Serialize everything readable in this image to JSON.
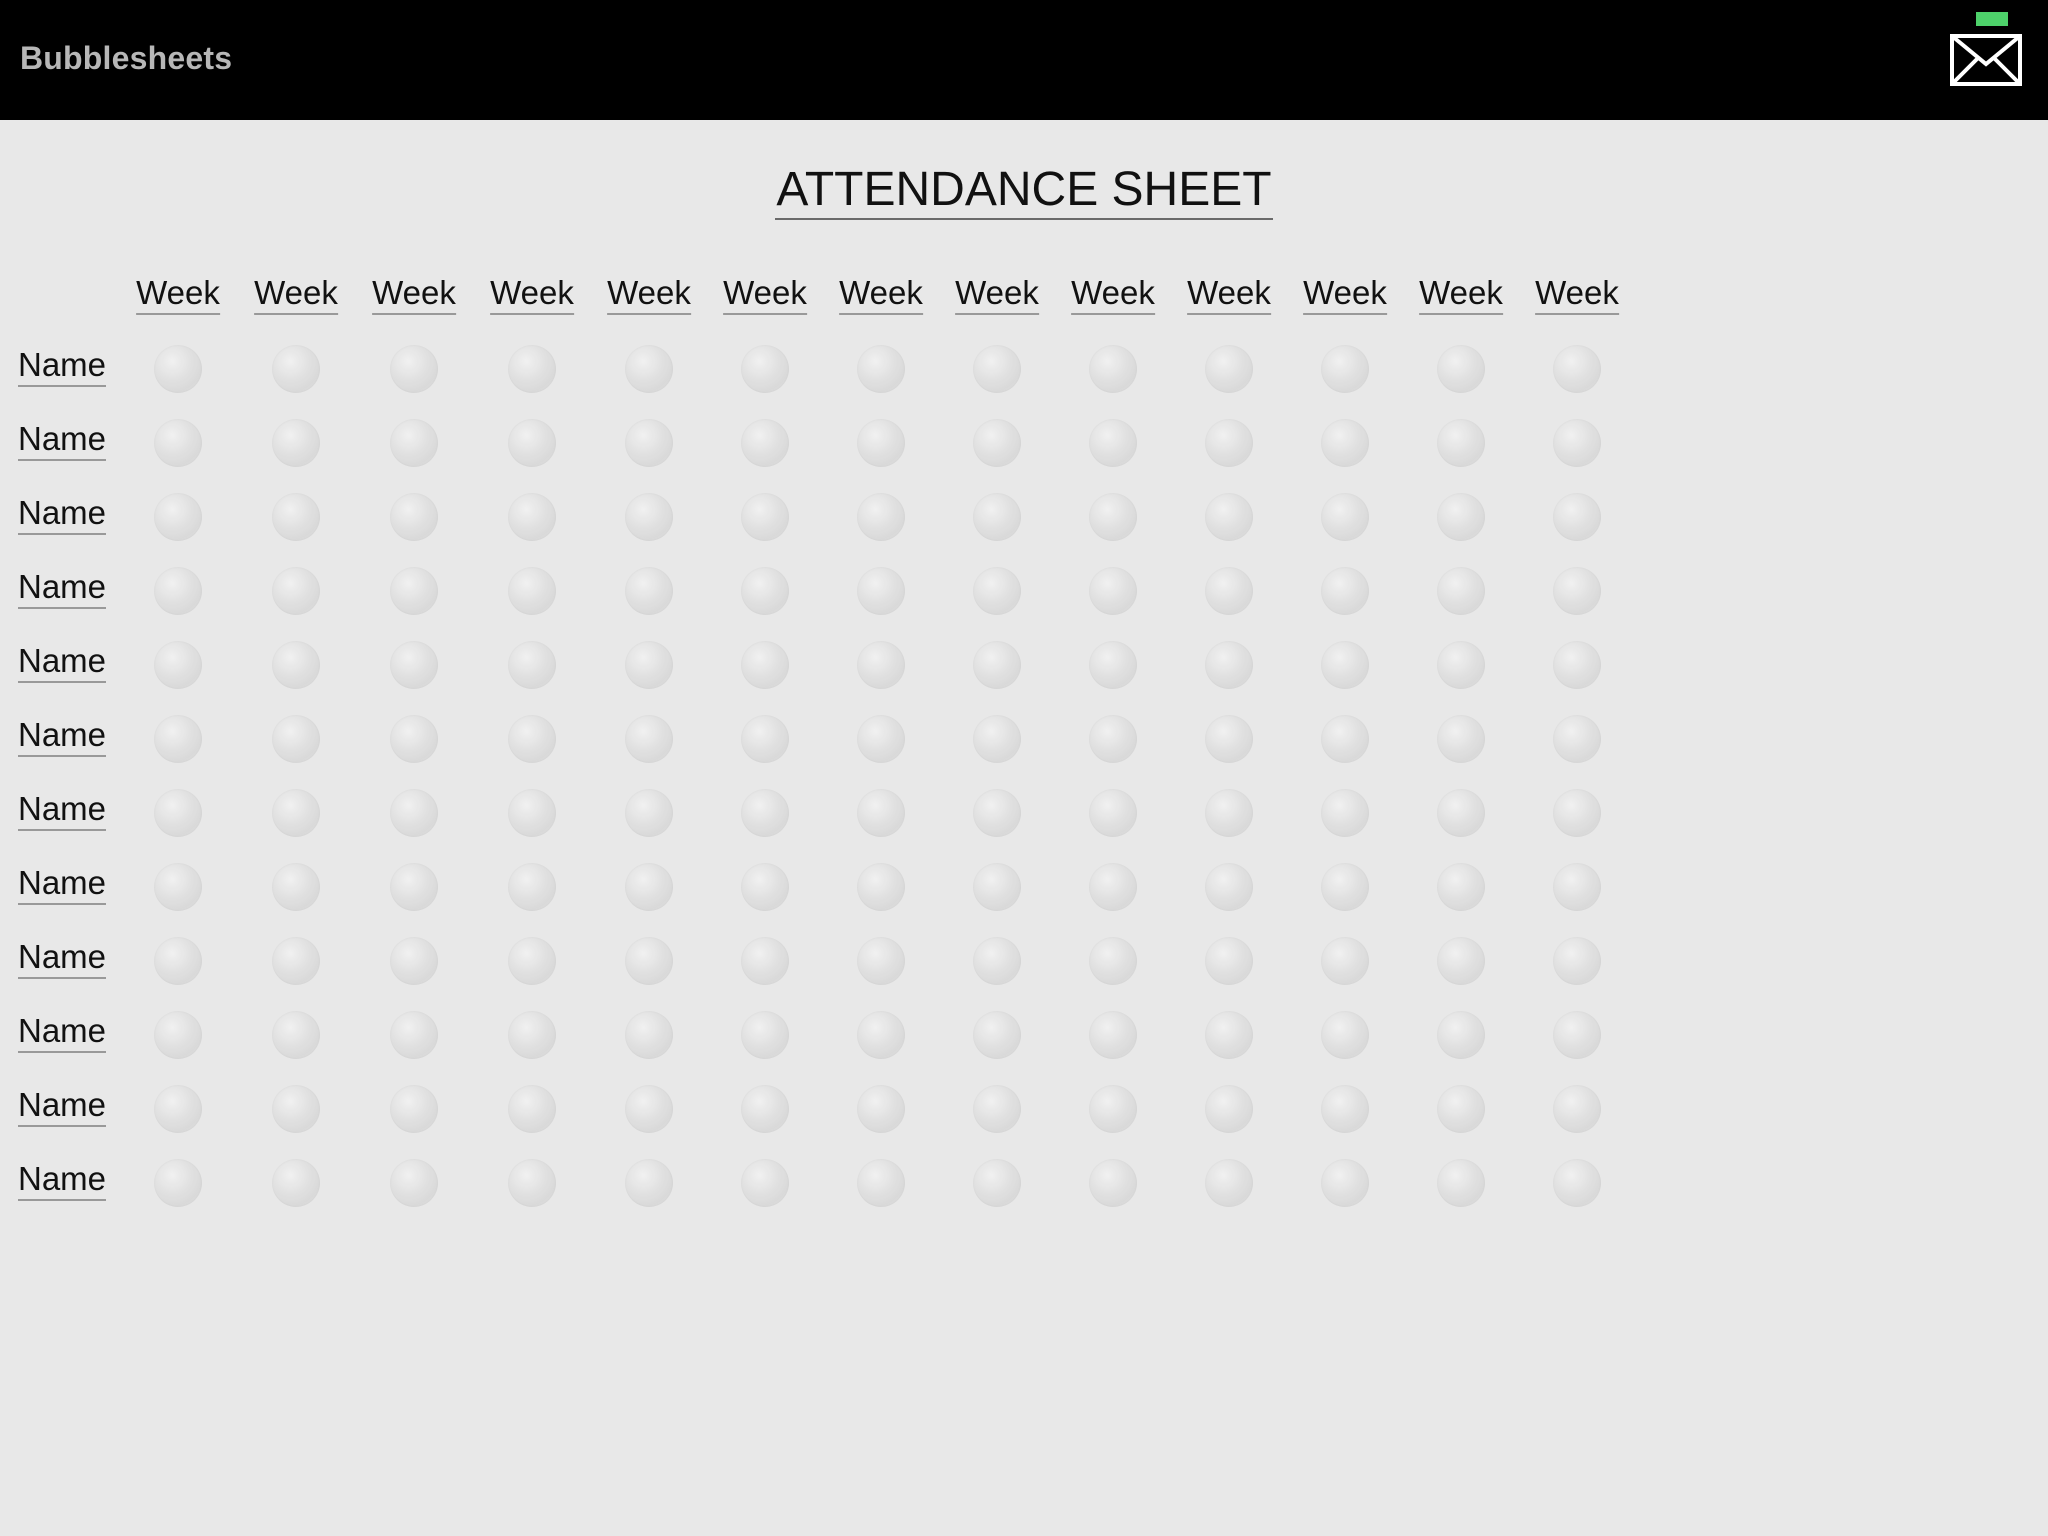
{
  "app": {
    "title": "Bubblesheets"
  },
  "header": {
    "mail_icon": "envelope-icon",
    "notification_color": "#4dd16a"
  },
  "sheet": {
    "title": "ATTENDANCE SHEET",
    "weeks": [
      "Week",
      "Week",
      "Week",
      "Week",
      "Week",
      "Week",
      "Week",
      "Week",
      "Week",
      "Week",
      "Week",
      "Week",
      "Week"
    ],
    "names": [
      "Name",
      "Name",
      "Name",
      "Name",
      "Name",
      "Name",
      "Name",
      "Name",
      "Name",
      "Name",
      "Name",
      "Name"
    ]
  },
  "colors": {
    "topbar": "#000000",
    "background": "#e8e8e8",
    "brand_text": "#b7b7b7"
  }
}
